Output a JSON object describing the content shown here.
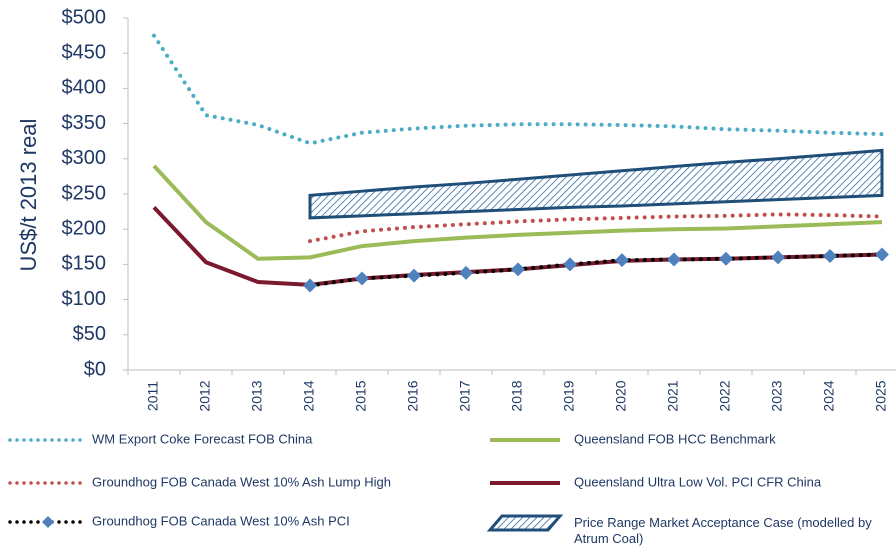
{
  "chart_data": {
    "type": "line",
    "ylabel": "US$/t 2013 real",
    "categories": [
      "2011",
      "2012",
      "2013",
      "2014",
      "2015",
      "2016",
      "2017",
      "2018",
      "2019",
      "2020",
      "2021",
      "2022",
      "2023",
      "2024",
      "2025"
    ],
    "ylim": [
      0,
      500
    ],
    "yticks": [
      {
        "value": 0,
        "label": "$0"
      },
      {
        "value": 50,
        "label": "$50"
      },
      {
        "value": 100,
        "label": "$100"
      },
      {
        "value": 150,
        "label": "$150"
      },
      {
        "value": 200,
        "label": "$200"
      },
      {
        "value": 250,
        "label": "$250"
      },
      {
        "value": 300,
        "label": "$300"
      },
      {
        "value": 350,
        "label": "$350"
      },
      {
        "value": 400,
        "label": "$400"
      },
      {
        "value": 450,
        "label": "$450"
      },
      {
        "value": 500,
        "label": "$500"
      }
    ],
    "series": [
      {
        "name": "WM Export Coke Forecast FOB China",
        "color": "#4bacc6",
        "style": "dotted",
        "values": [
          475,
          362,
          348,
          322,
          337,
          343,
          347,
          349,
          349,
          348,
          346,
          342,
          340,
          337,
          335
        ]
      },
      {
        "name": "Queensland  FOB HCC Benchmark",
        "color": "#9bbb59",
        "style": "solid",
        "values": [
          290,
          210,
          158,
          160,
          176,
          183,
          188,
          192,
          195,
          198,
          200,
          201,
          204,
          207,
          210
        ]
      },
      {
        "name": "Groundhog FOB Canada West 10% Ash Lump High",
        "color": "#c0504d",
        "style": "dotted",
        "values": [
          null,
          null,
          null,
          183,
          197,
          203,
          207,
          211,
          214,
          216,
          218,
          219,
          221,
          220,
          218
        ]
      },
      {
        "name": "Queensland  Ultra Low Vol. PCI CFR China",
        "color": "#7b1a2e",
        "style": "solid",
        "values": [
          231,
          153,
          125,
          121,
          130,
          135,
          139,
          143,
          149,
          155,
          157,
          158,
          160,
          162,
          164
        ]
      },
      {
        "name": "Groundhog FOB Canada West 10% Ash PCI",
        "color": "#000000",
        "style": "dotted",
        "marker": "diamond",
        "marker_color": "#4f81bd",
        "values": [
          null,
          null,
          null,
          120,
          130,
          134,
          138,
          143,
          150,
          156,
          157,
          158,
          160,
          162,
          164
        ]
      }
    ],
    "band": {
      "name": "Price Range Market Acceptance Case (modelled by Atrum Coal)",
      "color": "#1f4e79",
      "upper": [
        null,
        null,
        null,
        248,
        254,
        260,
        265,
        271,
        277,
        283,
        289,
        295,
        300,
        306,
        312
      ],
      "lower": [
        null,
        null,
        null,
        216,
        219,
        222,
        225,
        228,
        231,
        233,
        236,
        239,
        242,
        245,
        248
      ]
    }
  }
}
